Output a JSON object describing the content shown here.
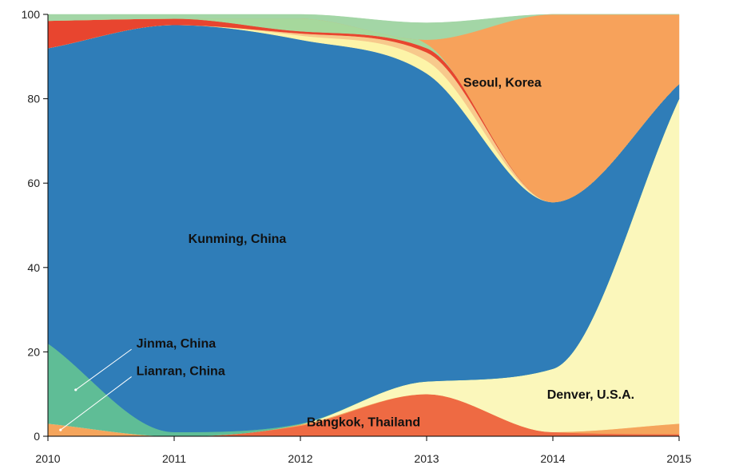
{
  "chart_data": {
    "type": "area",
    "stacked": true,
    "normalized": true,
    "x": [
      2010,
      2011,
      2012,
      2013,
      2014,
      2015
    ],
    "x_tick_labels": [
      "2010",
      "2011",
      "2012",
      "2013",
      "2014",
      "2015"
    ],
    "ylim": [
      0,
      100
    ],
    "y_ticks": [
      0,
      20,
      40,
      60,
      80,
      100
    ],
    "y_tick_labels": [
      "0",
      "20",
      "40",
      "60",
      "80",
      "100"
    ],
    "grid": false,
    "series": [
      {
        "name": "Bangkok, Thailand",
        "color": "#ee6a43",
        "values": [
          0,
          0,
          2.5,
          10,
          1,
          0.5
        ]
      },
      {
        "name": "Lianran, China",
        "color": "#f5a55c",
        "values": [
          3,
          0,
          0.3,
          0,
          0,
          2.5
        ]
      },
      {
        "name": "Denver, U.S.A.",
        "color": "#fbf7bb",
        "values": [
          0,
          0,
          0,
          3,
          15,
          77
        ]
      },
      {
        "name": "Jinma, China",
        "color": "#5fbd96",
        "values": [
          19,
          1,
          0.2,
          0,
          0,
          0
        ]
      },
      {
        "name": "Kunming, China",
        "color": "#2f7db8",
        "values": [
          70,
          96.5,
          91,
          73,
          39.5,
          3.5
        ]
      },
      {
        "name": "",
        "color": "#fdf4a8",
        "values": [
          0,
          0,
          1,
          3,
          0,
          0
        ]
      },
      {
        "name": "",
        "color": "#f7c98c",
        "values": [
          0,
          0,
          0.5,
          2,
          0,
          0
        ]
      },
      {
        "name": "",
        "color": "#e8452f",
        "values": [
          6.5,
          1.5,
          0.5,
          1,
          0,
          0
        ]
      },
      {
        "name": "",
        "color": "#a6d89c",
        "values": [
          0,
          0,
          3,
          1,
          0,
          0
        ]
      },
      {
        "name": "Seoul, Korea",
        "color": "#f7a25b",
        "values": [
          0,
          0,
          0,
          1,
          44.5,
          16.5
        ]
      },
      {
        "name": "",
        "color": "#a3d6a6",
        "values": [
          1.5,
          1,
          1,
          4,
          0,
          0
        ]
      }
    ],
    "annotations": [
      {
        "text": "Kunming, China",
        "x": 2011.5,
        "y": 47
      },
      {
        "text": "Seoul, Korea",
        "x": 2013.6,
        "y": 84
      },
      {
        "text": "Denver, U.S.A.",
        "x": 2014.3,
        "y": 10
      },
      {
        "text": "Bangkok, Thailand",
        "x": 2012.5,
        "y": 3.5
      },
      {
        "text": "Jinma, China",
        "x": 2010.7,
        "y": 21,
        "pointer_x": 2010.22,
        "pointer_y": 11
      },
      {
        "text": "Lianran, China",
        "x": 2010.7,
        "y": 14.5,
        "pointer_x": 2010.1,
        "pointer_y": 1.5
      }
    ]
  }
}
